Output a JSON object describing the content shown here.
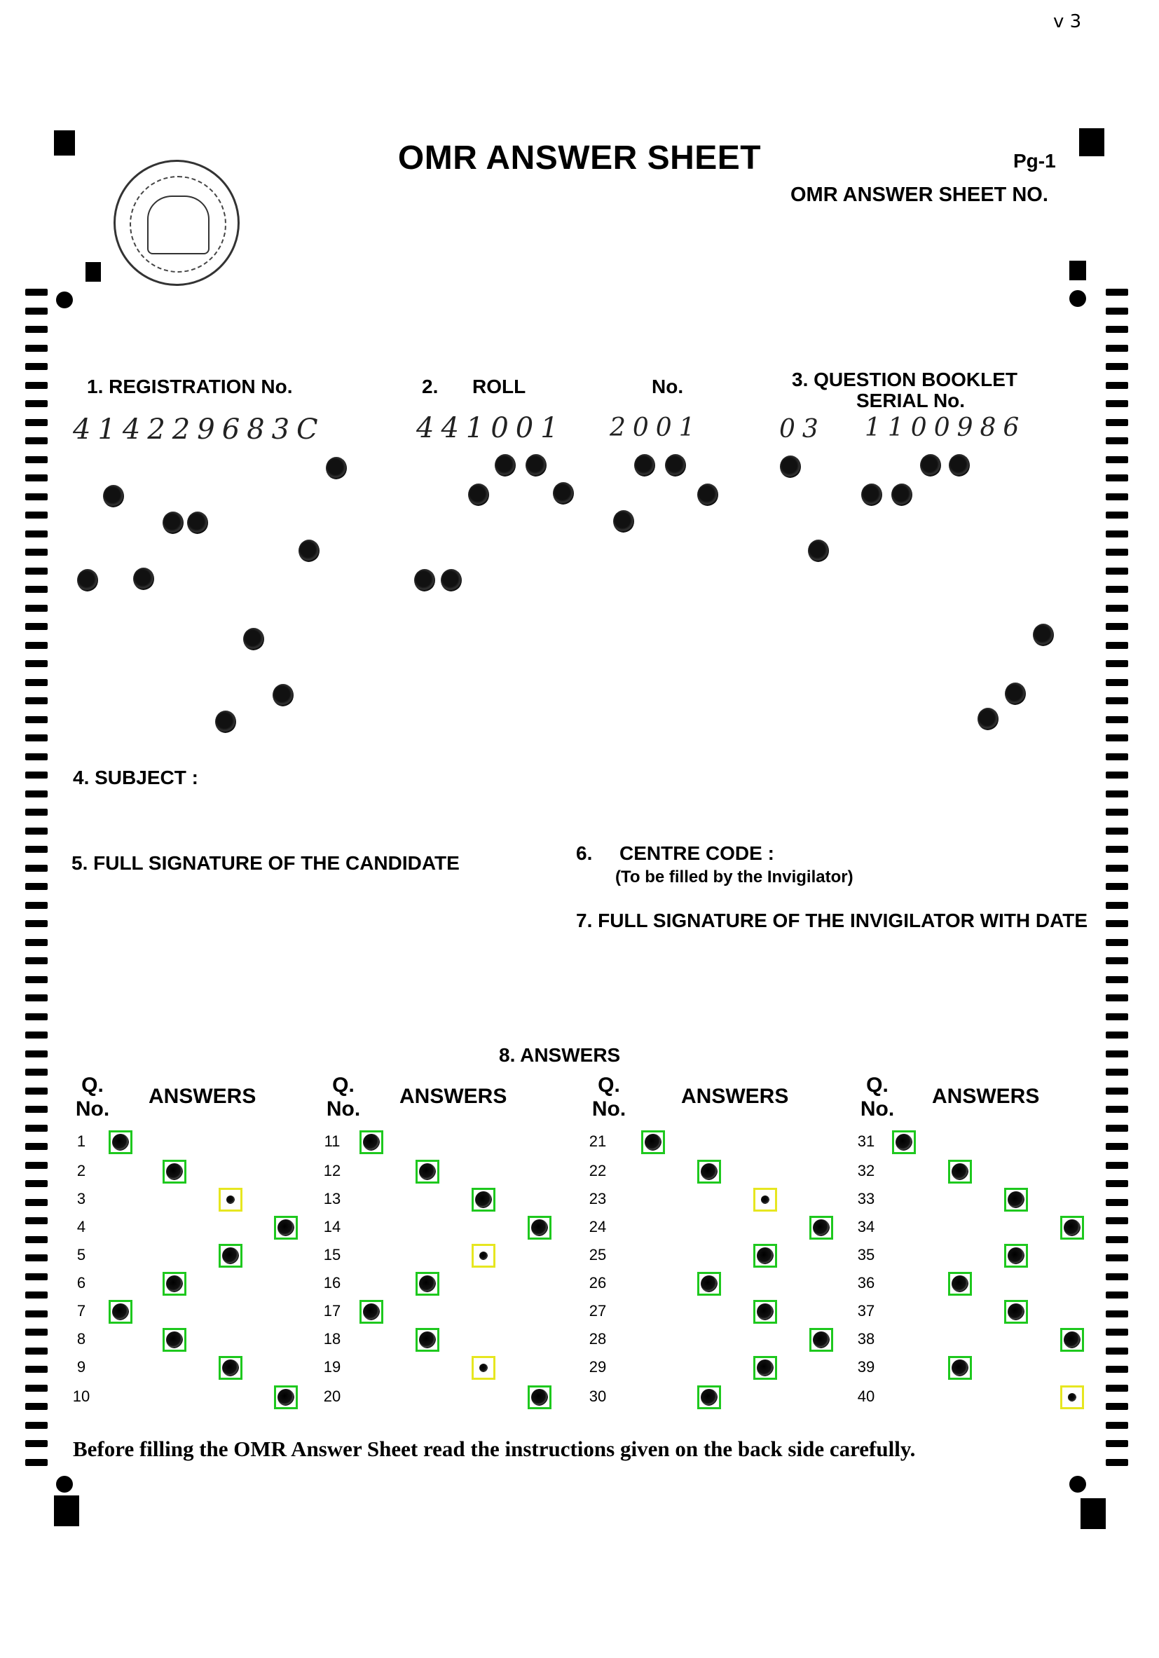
{
  "version_mark": "v 3",
  "header": {
    "title": "OMR ANSWER SHEET",
    "page": "Pg-1",
    "sheet_no_label": "OMR ANSWER SHEET NO."
  },
  "fields": {
    "registration_label": "1. REGISTRATION No.",
    "registration_value": "414229683C",
    "roll_prefix": "2.",
    "roll_label": "ROLL",
    "roll_no": "No.",
    "roll_value_a": "441001",
    "roll_value_b": "2001",
    "booklet_label_1": "3. QUESTION BOOKLET",
    "booklet_label_2": "SERIAL No.",
    "booklet_value_a": "03",
    "booklet_value_b": "1100986",
    "subject_label": "4. SUBJECT :",
    "signature_label": "5. FULL SIGNATURE OF THE CANDIDATE",
    "centre_num": "6.",
    "centre_label": "CENTRE CODE :",
    "centre_note": "(To be filled by the Invigilator)",
    "invigilator_label": "7. FULL SIGNATURE OF THE INVIGILATOR WITH DATE"
  },
  "answers_section": {
    "title": "8. ANSWERS",
    "qno_label_1": "Q.",
    "qno_label_2": "No.",
    "answers_label": "ANSWERS",
    "questions": [
      {
        "q": "1",
        "choice": 0,
        "status": "ok"
      },
      {
        "q": "2",
        "choice": 1,
        "status": "ok"
      },
      {
        "q": "3",
        "choice": 2,
        "status": "warn"
      },
      {
        "q": "4",
        "choice": 3,
        "status": "ok"
      },
      {
        "q": "5",
        "choice": 2,
        "status": "ok"
      },
      {
        "q": "6",
        "choice": 1,
        "status": "ok"
      },
      {
        "q": "7",
        "choice": 0,
        "status": "ok"
      },
      {
        "q": "8",
        "choice": 1,
        "status": "ok"
      },
      {
        "q": "9",
        "choice": 2,
        "status": "ok"
      },
      {
        "q": "10",
        "choice": 3,
        "status": "ok"
      },
      {
        "q": "11",
        "choice": 0,
        "status": "ok"
      },
      {
        "q": "12",
        "choice": 1,
        "status": "ok"
      },
      {
        "q": "13",
        "choice": 2,
        "status": "ok"
      },
      {
        "q": "14",
        "choice": 3,
        "status": "ok"
      },
      {
        "q": "15",
        "choice": 2,
        "status": "warn"
      },
      {
        "q": "16",
        "choice": 1,
        "status": "ok"
      },
      {
        "q": "17",
        "choice": 0,
        "status": "ok"
      },
      {
        "q": "18",
        "choice": 1,
        "status": "ok"
      },
      {
        "q": "19",
        "choice": 2,
        "status": "warn"
      },
      {
        "q": "20",
        "choice": 3,
        "status": "ok"
      },
      {
        "q": "21",
        "choice": 0,
        "status": "ok"
      },
      {
        "q": "22",
        "choice": 1,
        "status": "ok"
      },
      {
        "q": "23",
        "choice": 2,
        "status": "warn"
      },
      {
        "q": "24",
        "choice": 3,
        "status": "ok"
      },
      {
        "q": "25",
        "choice": 2,
        "status": "ok"
      },
      {
        "q": "26",
        "choice": 1,
        "status": "ok"
      },
      {
        "q": "27",
        "choice": 2,
        "status": "ok"
      },
      {
        "q": "28",
        "choice": 3,
        "status": "ok"
      },
      {
        "q": "29",
        "choice": 2,
        "status": "ok"
      },
      {
        "q": "30",
        "choice": 1,
        "status": "ok"
      },
      {
        "q": "31",
        "choice": 0,
        "status": "ok"
      },
      {
        "q": "32",
        "choice": 1,
        "status": "ok"
      },
      {
        "q": "33",
        "choice": 2,
        "status": "ok"
      },
      {
        "q": "34",
        "choice": 3,
        "status": "ok"
      },
      {
        "q": "35",
        "choice": 2,
        "status": "ok"
      },
      {
        "q": "36",
        "choice": 1,
        "status": "ok"
      },
      {
        "q": "37",
        "choice": 2,
        "status": "ok"
      },
      {
        "q": "38",
        "choice": 3,
        "status": "ok"
      },
      {
        "q": "39",
        "choice": 1,
        "status": "ok"
      },
      {
        "q": "40",
        "choice": 3,
        "status": "warn"
      }
    ]
  },
  "footer": "Before filling the OMR Answer Sheet read the instructions given on the back side carefully.",
  "colors": {
    "detected_box": "#1ec81e",
    "flagged_box": "#e6e620"
  }
}
